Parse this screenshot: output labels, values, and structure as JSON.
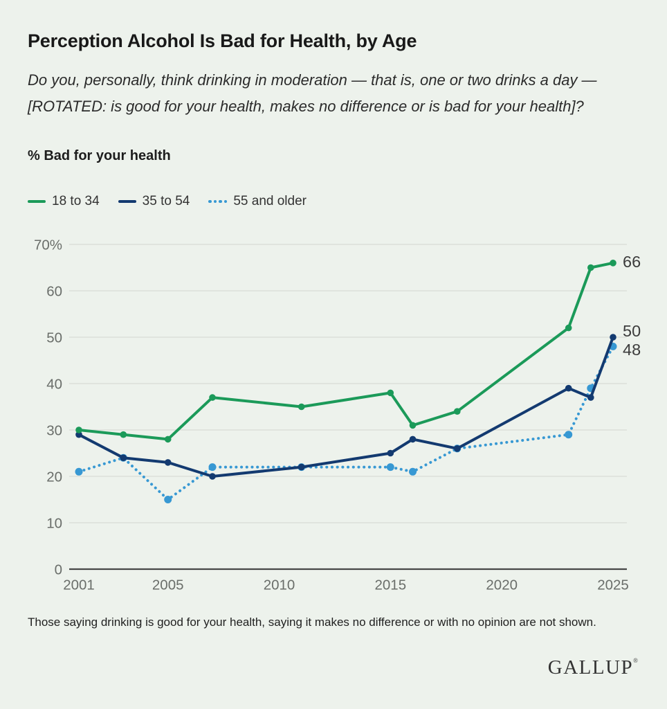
{
  "header": {
    "title": "Perception Alcohol Is Bad for Health, by Age",
    "question": "Do you, personally, think drinking in moderation — that is, one or two drinks a day — [ROTATED: is good for your health, makes no difference or is bad for your health]?",
    "measure_label": "% Bad for your health"
  },
  "footer": {
    "note": "Those saying drinking is good for your health, saying it makes no difference or with no opinion are not shown.",
    "brand": "GALLUP",
    "brand_mark": "®"
  },
  "colors": {
    "background": "#edf2ec",
    "green": "#1b9a59",
    "navy": "#133a70",
    "light_blue": "#3798d3",
    "grid": "#d8dcd6",
    "axis": "#474747",
    "tick_text": "#6a6e6a",
    "end_label_text": "#3c3c3c"
  },
  "chart_data": {
    "type": "line",
    "title": "Perception Alcohol Is Bad for Health, by Age",
    "ylabel": "% Bad for your health",
    "xlabel": "",
    "grid": true,
    "legend_position": "top",
    "xlim": [
      2001,
      2025
    ],
    "ylim": [
      0,
      70
    ],
    "x": [
      2001,
      2003,
      2005,
      2007,
      2011,
      2015,
      2016,
      2018,
      2023,
      2024,
      2025
    ],
    "series": [
      {
        "name": "18 to 34",
        "color": "#1b9a59",
        "style": "solid",
        "values": [
          30,
          29,
          28,
          37,
          35,
          38,
          31,
          34,
          52,
          65,
          66
        ]
      },
      {
        "name": "35 to 54",
        "color": "#133a70",
        "style": "solid",
        "values": [
          29,
          24,
          23,
          20,
          22,
          25,
          28,
          26,
          39,
          37,
          50
        ]
      },
      {
        "name": "55 and older",
        "color": "#3798d3",
        "style": "dotted",
        "values": [
          21,
          24,
          15,
          22,
          22,
          22,
          21,
          26,
          29,
          39,
          48
        ]
      }
    ],
    "end_labels": [
      "66",
      "50",
      "48"
    ],
    "xticks": [
      2001,
      2005,
      2010,
      2015,
      2020,
      2025
    ],
    "yticks": [
      0,
      10,
      20,
      30,
      40,
      50,
      60,
      70
    ],
    "ytick_top_label": "70%"
  }
}
